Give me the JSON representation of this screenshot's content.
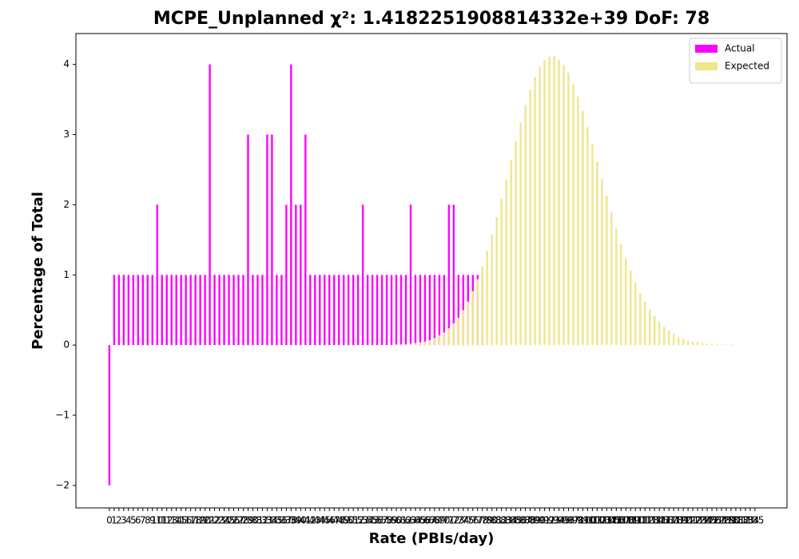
{
  "chart_data": {
    "type": "bar",
    "title": "MCPE_Unplanned χ²: 1.4182251908814332e+39 DoF: 78",
    "xlabel": "Rate (PBIs/day)",
    "ylabel": "Percentage of Total",
    "x": [
      0,
      1,
      2,
      3,
      4,
      5,
      6,
      7,
      8,
      9,
      10,
      11,
      12,
      13,
      14,
      15,
      16,
      17,
      18,
      19,
      20,
      21,
      22,
      23,
      24,
      25,
      26,
      27,
      28,
      29,
      30,
      31,
      32,
      33,
      34,
      35,
      36,
      37,
      38,
      39,
      40,
      41,
      42,
      43,
      44,
      45,
      46,
      47,
      48,
      49,
      50,
      51,
      52,
      53,
      54,
      55,
      56,
      57,
      58,
      59,
      60,
      61,
      62,
      63,
      64,
      65,
      66,
      67,
      68,
      69,
      70,
      71,
      72,
      73,
      74,
      75,
      76,
      77,
      78,
      79,
      80,
      81,
      82,
      83,
      84,
      85,
      86,
      87,
      88,
      89,
      90,
      91,
      92,
      93,
      94,
      95,
      96,
      97,
      98,
      99,
      100,
      101,
      102,
      103,
      104,
      105,
      106,
      107,
      108,
      109,
      110,
      111,
      112,
      113,
      114,
      115,
      116,
      117,
      118,
      119,
      120,
      121,
      122,
      123,
      124,
      125,
      126,
      127,
      128,
      129,
      130,
      131,
      132,
      133,
      134,
      135
    ],
    "xlim": [
      -7,
      141.7
    ],
    "ylim": [
      -2.32,
      4.44
    ],
    "yticks": [
      {
        "value": -2,
        "label": "−2"
      },
      {
        "value": -1,
        "label": "−1"
      },
      0,
      1,
      2,
      3,
      4
    ],
    "legend": "upper right",
    "series": [
      {
        "name": "Actual",
        "color": "#ff00ff",
        "values": [
          -2,
          1,
          1,
          1,
          1,
          1,
          1,
          1,
          1,
          1,
          2,
          1,
          1,
          1,
          1,
          1,
          1,
          1,
          1,
          1,
          1,
          4,
          1,
          1,
          1,
          1,
          1,
          1,
          1,
          3,
          1,
          1,
          1,
          3,
          3,
          1,
          1,
          2,
          4,
          2,
          2,
          3,
          1,
          1,
          1,
          1,
          1,
          1,
          1,
          1,
          1,
          1,
          1,
          2,
          1,
          1,
          1,
          1,
          1,
          1,
          1,
          1,
          1,
          2,
          1,
          1,
          1,
          1,
          1,
          1,
          1,
          2,
          2,
          1,
          1,
          1,
          1,
          1,
          1,
          null,
          null,
          null,
          null,
          null,
          null,
          null,
          null,
          null,
          null,
          null,
          null,
          null,
          null,
          null,
          null,
          null,
          null,
          null,
          null,
          null,
          null,
          null,
          null,
          null,
          null,
          null,
          null,
          null,
          null,
          null,
          null,
          null,
          null,
          null,
          null,
          null,
          null,
          null,
          null,
          null,
          null,
          null,
          null,
          null,
          null,
          null,
          null,
          null,
          null,
          null,
          null,
          null,
          null,
          null,
          null,
          null
        ]
      },
      {
        "name": "Expected",
        "color": "#f0e68c",
        "values": [
          0,
          0,
          0,
          0,
          0,
          0,
          0,
          0,
          0,
          0,
          0,
          0,
          0,
          0,
          0,
          0,
          0,
          0,
          0,
          0,
          0,
          0,
          0,
          0,
          0,
          0,
          0,
          0,
          0,
          0,
          0,
          0,
          0,
          0,
          0,
          0,
          0,
          0,
          0,
          0,
          0,
          0,
          0,
          0,
          0,
          0,
          0,
          0,
          0,
          0,
          0,
          0,
          0,
          0,
          0,
          0,
          0,
          0,
          0,
          0,
          0.01,
          0.01,
          0.01,
          0.02,
          0.03,
          0.04,
          0.05,
          0.07,
          0.1,
          0.14,
          0.18,
          0.24,
          0.31,
          0.39,
          0.5,
          0.62,
          0.77,
          0.94,
          1.12,
          1.34,
          1.57,
          1.82,
          2.09,
          2.36,
          2.64,
          2.91,
          3.17,
          3.42,
          3.64,
          3.82,
          3.96,
          4.06,
          4.11,
          4.12,
          4.07,
          3.99,
          3.88,
          3.72,
          3.54,
          3.34,
          3.11,
          2.87,
          2.62,
          2.37,
          2.13,
          1.89,
          1.66,
          1.44,
          1.24,
          1.06,
          0.89,
          0.74,
          0.62,
          0.5,
          0.41,
          0.33,
          0.26,
          0.21,
          0.16,
          0.12,
          0.09,
          0.07,
          0.05,
          0.04,
          0.03,
          0.02,
          0.02,
          0.01,
          0.01,
          0.01,
          0.01,
          0,
          0,
          0,
          0,
          0
        ]
      }
    ]
  }
}
